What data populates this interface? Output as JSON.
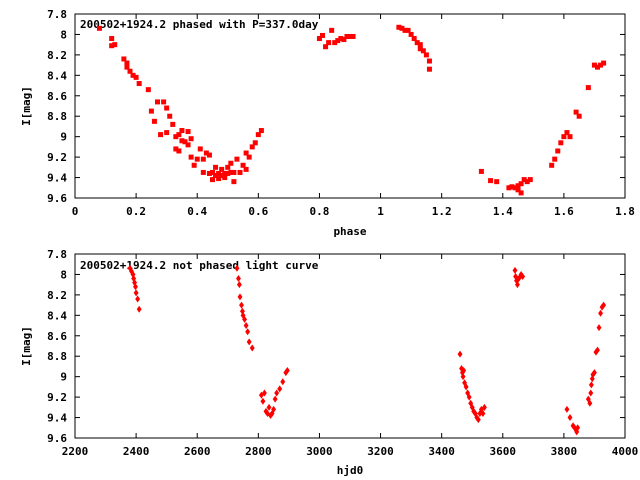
{
  "chart_data": [
    {
      "type": "scatter",
      "title": "200502+1924.2 phased with P=337.0day",
      "xlabel": "phase",
      "ylabel": "I[mag]",
      "xlim": [
        0,
        1.8
      ],
      "ylim": [
        9.6,
        7.8
      ],
      "y_inverted": true,
      "xticks": [
        "0",
        "0.2",
        "0.4",
        "0.6",
        "0.8",
        "1",
        "1.2",
        "1.4",
        "1.6",
        "1.8"
      ],
      "yticks": [
        "7.8",
        "8",
        "8.2",
        "8.4",
        "8.6",
        "8.8",
        "9",
        "9.2",
        "9.4",
        "9.6"
      ],
      "marker_color": "#ff0000",
      "grid": false,
      "series": [
        {
          "points": [
            [
              0.08,
              7.94
            ],
            [
              0.12,
              8.04
            ],
            [
              0.12,
              8.11
            ],
            [
              0.13,
              8.1
            ],
            [
              0.16,
              8.24
            ],
            [
              0.17,
              8.28
            ],
            [
              0.17,
              8.32
            ],
            [
              0.18,
              8.36
            ],
            [
              0.19,
              8.4
            ],
            [
              0.2,
              8.42
            ],
            [
              0.21,
              8.48
            ],
            [
              0.24,
              8.54
            ],
            [
              0.25,
              8.75
            ],
            [
              0.26,
              8.85
            ],
            [
              0.27,
              8.66
            ],
            [
              0.28,
              8.98
            ],
            [
              0.29,
              8.66
            ],
            [
              0.3,
              8.96
            ],
            [
              0.3,
              8.72
            ],
            [
              0.31,
              8.8
            ],
            [
              0.32,
              8.88
            ],
            [
              0.33,
              9.0
            ],
            [
              0.33,
              9.12
            ],
            [
              0.34,
              8.98
            ],
            [
              0.34,
              9.14
            ],
            [
              0.35,
              8.94
            ],
            [
              0.35,
              9.04
            ],
            [
              0.36,
              9.05
            ],
            [
              0.37,
              9.08
            ],
            [
              0.37,
              8.95
            ],
            [
              0.38,
              9.02
            ],
            [
              0.38,
              9.2
            ],
            [
              0.39,
              9.28
            ],
            [
              0.4,
              9.22
            ],
            [
              0.41,
              9.12
            ],
            [
              0.42,
              9.22
            ],
            [
              0.42,
              9.35
            ],
            [
              0.43,
              9.16
            ],
            [
              0.44,
              9.18
            ],
            [
              0.44,
              9.36
            ],
            [
              0.45,
              9.35
            ],
            [
              0.45,
              9.42
            ],
            [
              0.46,
              9.3
            ],
            [
              0.46,
              9.38
            ],
            [
              0.47,
              9.36
            ],
            [
              0.47,
              9.41
            ],
            [
              0.48,
              9.32
            ],
            [
              0.48,
              9.38
            ],
            [
              0.49,
              9.36
            ],
            [
              0.49,
              9.4
            ],
            [
              0.5,
              9.3
            ],
            [
              0.5,
              9.36
            ],
            [
              0.51,
              9.35
            ],
            [
              0.51,
              9.26
            ],
            [
              0.52,
              9.44
            ],
            [
              0.52,
              9.35
            ],
            [
              0.53,
              9.22
            ],
            [
              0.54,
              9.35
            ],
            [
              0.55,
              9.28
            ],
            [
              0.56,
              9.16
            ],
            [
              0.56,
              9.32
            ],
            [
              0.57,
              9.2
            ],
            [
              0.58,
              9.1
            ],
            [
              0.59,
              9.06
            ],
            [
              0.6,
              8.98
            ],
            [
              0.61,
              8.94
            ],
            [
              0.8,
              8.04
            ],
            [
              0.81,
              8.01
            ],
            [
              0.82,
              8.12
            ],
            [
              0.83,
              8.08
            ],
            [
              0.84,
              7.96
            ],
            [
              0.85,
              8.08
            ],
            [
              0.86,
              8.06
            ],
            [
              0.87,
              8.04
            ],
            [
              0.88,
              8.05
            ],
            [
              0.89,
              8.02
            ],
            [
              0.9,
              8.02
            ],
            [
              0.91,
              8.02
            ],
            [
              1.06,
              7.93
            ],
            [
              1.07,
              7.94
            ],
            [
              1.08,
              7.96
            ],
            [
              1.09,
              7.96
            ],
            [
              1.1,
              8.0
            ],
            [
              1.11,
              8.04
            ],
            [
              1.12,
              8.08
            ],
            [
              1.13,
              8.1
            ],
            [
              1.13,
              8.14
            ],
            [
              1.14,
              8.16
            ],
            [
              1.15,
              8.2
            ],
            [
              1.16,
              8.26
            ],
            [
              1.16,
              8.34
            ],
            [
              1.33,
              9.34
            ],
            [
              1.36,
              9.43
            ],
            [
              1.38,
              9.44
            ],
            [
              1.42,
              9.5
            ],
            [
              1.43,
              9.49
            ],
            [
              1.44,
              9.5
            ],
            [
              1.45,
              9.48
            ],
            [
              1.45,
              9.52
            ],
            [
              1.46,
              9.46
            ],
            [
              1.46,
              9.55
            ],
            [
              1.47,
              9.42
            ],
            [
              1.48,
              9.44
            ],
            [
              1.49,
              9.42
            ],
            [
              1.56,
              9.28
            ],
            [
              1.57,
              9.22
            ],
            [
              1.58,
              9.14
            ],
            [
              1.59,
              9.06
            ],
            [
              1.6,
              9.0
            ],
            [
              1.61,
              8.96
            ],
            [
              1.62,
              9.0
            ],
            [
              1.64,
              8.76
            ],
            [
              1.65,
              8.8
            ],
            [
              1.68,
              8.52
            ],
            [
              1.7,
              8.3
            ],
            [
              1.71,
              8.32
            ],
            [
              1.72,
              8.3
            ],
            [
              1.73,
              8.28
            ]
          ]
        }
      ]
    },
    {
      "type": "scatter",
      "title": "200502+1924.2 not phased light curve",
      "xlabel": "hjd0",
      "ylabel": "I[mag]",
      "xlim": [
        2200,
        4000
      ],
      "ylim": [
        9.6,
        7.8
      ],
      "y_inverted": true,
      "xticks": [
        "2200",
        "2400",
        "2600",
        "2800",
        "3000",
        "3200",
        "3400",
        "3600",
        "3800",
        "4000"
      ],
      "yticks": [
        "7.8",
        "8",
        "8.2",
        "8.4",
        "8.6",
        "8.8",
        "9",
        "9.2",
        "9.4",
        "9.6"
      ],
      "marker_color": "#ff0000",
      "grid": false,
      "series": [
        {
          "points": [
            [
              2380,
              7.94
            ],
            [
              2385,
              7.97
            ],
            [
              2390,
              8.0
            ],
            [
              2392,
              8.04
            ],
            [
              2395,
              8.08
            ],
            [
              2398,
              8.12
            ],
            [
              2400,
              8.18
            ],
            [
              2405,
              8.24
            ],
            [
              2410,
              8.34
            ],
            [
              2730,
              7.94
            ],
            [
              2735,
              8.04
            ],
            [
              2738,
              8.1
            ],
            [
              2740,
              8.22
            ],
            [
              2745,
              8.3
            ],
            [
              2748,
              8.36
            ],
            [
              2750,
              8.4
            ],
            [
              2755,
              8.44
            ],
            [
              2760,
              8.5
            ],
            [
              2765,
              8.56
            ],
            [
              2770,
              8.66
            ],
            [
              2780,
              8.72
            ],
            [
              2810,
              9.18
            ],
            [
              2815,
              9.24
            ],
            [
              2820,
              9.16
            ],
            [
              2825,
              9.34
            ],
            [
              2830,
              9.36
            ],
            [
              2835,
              9.3
            ],
            [
              2840,
              9.38
            ],
            [
              2845,
              9.36
            ],
            [
              2850,
              9.32
            ],
            [
              2855,
              9.22
            ],
            [
              2860,
              9.16
            ],
            [
              2870,
              9.12
            ],
            [
              2880,
              9.05
            ],
            [
              2890,
              8.96
            ],
            [
              2895,
              8.94
            ],
            [
              3460,
              8.78
            ],
            [
              3465,
              8.92
            ],
            [
              3468,
              8.96
            ],
            [
              3470,
              9.0
            ],
            [
              3472,
              8.94
            ],
            [
              3475,
              9.06
            ],
            [
              3480,
              9.1
            ],
            [
              3485,
              9.16
            ],
            [
              3490,
              9.2
            ],
            [
              3495,
              9.26
            ],
            [
              3500,
              9.3
            ],
            [
              3505,
              9.34
            ],
            [
              3510,
              9.36
            ],
            [
              3515,
              9.4
            ],
            [
              3520,
              9.42
            ],
            [
              3525,
              9.36
            ],
            [
              3530,
              9.32
            ],
            [
              3535,
              9.36
            ],
            [
              3540,
              9.3
            ],
            [
              3640,
              7.96
            ],
            [
              3642,
              8.02
            ],
            [
              3645,
              8.06
            ],
            [
              3648,
              8.1
            ],
            [
              3650,
              8.05
            ],
            [
              3655,
              8.03
            ],
            [
              3660,
              8.0
            ],
            [
              3665,
              8.02
            ],
            [
              3810,
              9.32
            ],
            [
              3820,
              9.4
            ],
            [
              3830,
              9.48
            ],
            [
              3835,
              9.5
            ],
            [
              3840,
              9.52
            ],
            [
              3842,
              9.54
            ],
            [
              3845,
              9.5
            ],
            [
              3880,
              9.22
            ],
            [
              3885,
              9.26
            ],
            [
              3888,
              9.16
            ],
            [
              3890,
              9.08
            ],
            [
              3893,
              9.02
            ],
            [
              3895,
              8.98
            ],
            [
              3900,
              8.96
            ],
            [
              3905,
              8.76
            ],
            [
              3910,
              8.74
            ],
            [
              3915,
              8.52
            ],
            [
              3920,
              8.38
            ],
            [
              3925,
              8.32
            ],
            [
              3930,
              8.3
            ]
          ]
        }
      ]
    }
  ]
}
